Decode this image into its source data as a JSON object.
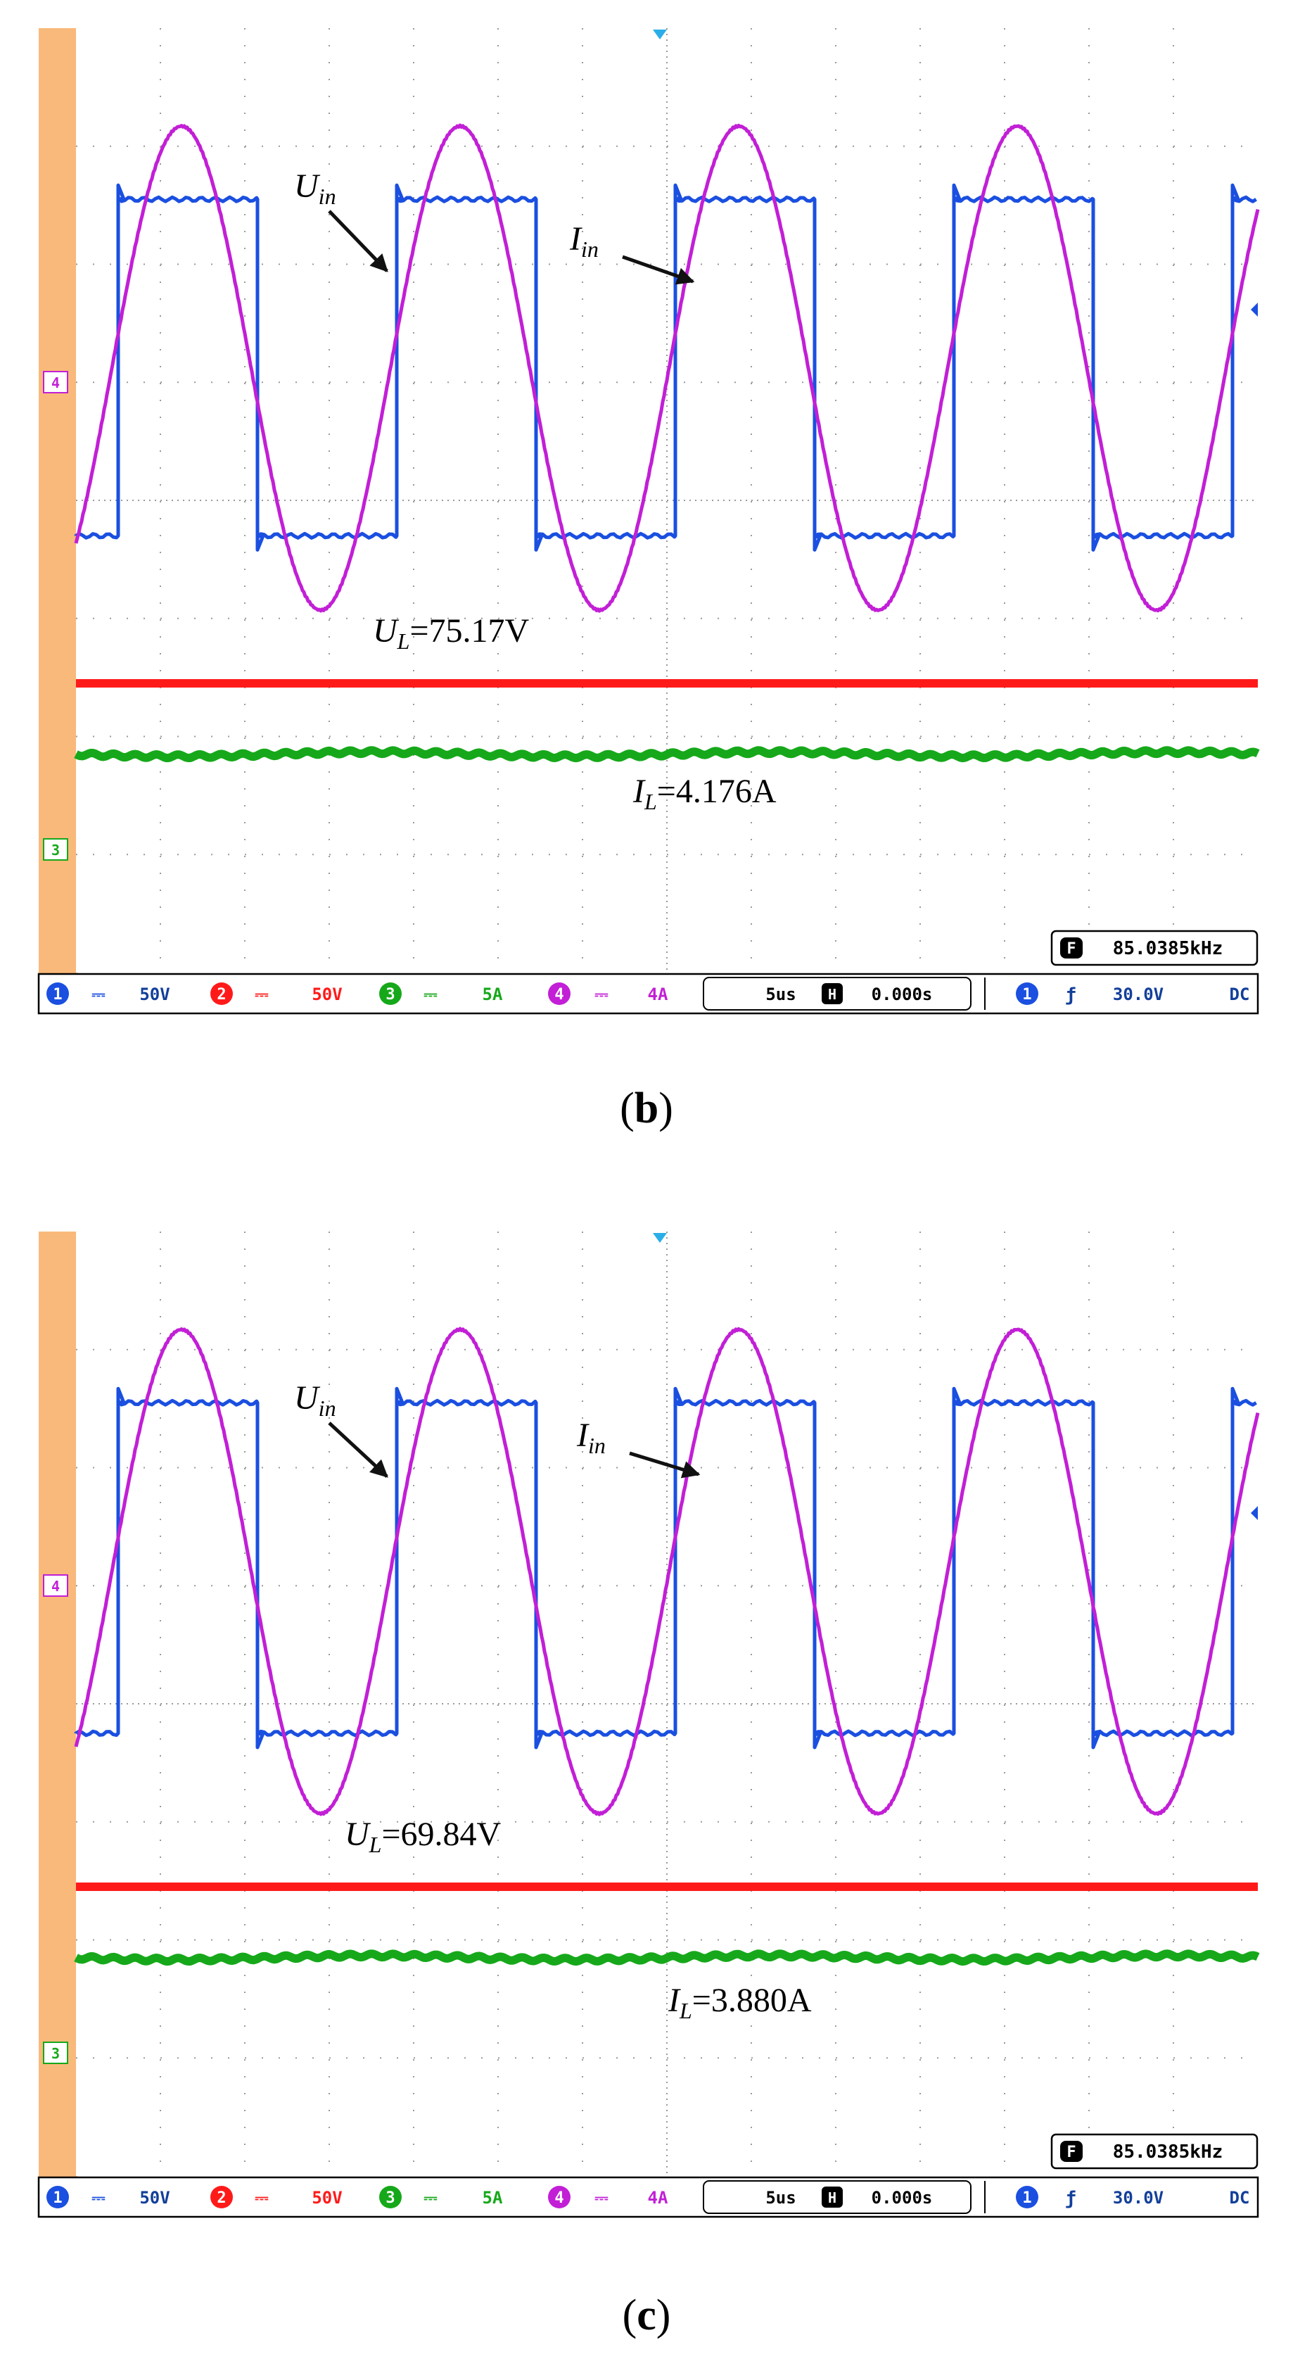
{
  "colors": {
    "ch1": "#1a4fe0",
    "ch2": "#ff1a1a",
    "ch3": "#16a81a",
    "ch4": "#c21fd6",
    "left_bar": "#f9b97a",
    "grid": "#9a9a9a",
    "statusbar_text": "#123f9a",
    "arrow": "#111111"
  },
  "panels": [
    {
      "caption_letter": "b",
      "caption_open": "(",
      "caption_close": ")",
      "labels": {
        "uin_main": "U",
        "uin_sub": "in",
        "iin_main": "I",
        "iin_sub": "in",
        "ul_main": "U",
        "ul_sub": "L",
        "ul_value": "=75.17V",
        "il_main": "I",
        "il_sub": "L",
        "il_value": "=4.176A"
      },
      "channel_markers": {
        "ch4": "4",
        "ch3": "3"
      },
      "frequency_readout": "85.0385kHz",
      "frequency_icon": "F",
      "statusbar": {
        "ch1_num": "1",
        "ch1_coupling": "⎓",
        "ch1_scale": "50V",
        "ch2_num": "2",
        "ch2_coupling": "⎓",
        "ch2_scale": "50V",
        "ch3_num": "3",
        "ch3_coupling": "⎓",
        "ch3_scale": "5A",
        "ch4_num": "4",
        "ch4_coupling": "⎓",
        "ch4_scale": "4A",
        "timebase": "5us",
        "h_icon": "H",
        "delay": "0.000s",
        "trig_ch": "1",
        "trig_slope": "ƒ",
        "trig_level": "30.0V",
        "trig_coupling": "DC"
      },
      "chart_data": {
        "type": "line",
        "xlabel": "",
        "ylabel": "",
        "x_divisions": 14,
        "y_divisions": 8,
        "grid": true,
        "series": [
          {
            "name": "Uin",
            "shape": "square",
            "color_key": "ch1",
            "period_div": 3.3,
            "high_div": 6.55,
            "low_div": 3.7,
            "first_rise_div": 0.5,
            "overshoot": true
          },
          {
            "name": "Iin",
            "shape": "sine",
            "color_key": "ch4",
            "period_div": 3.3,
            "center_div": 5.12,
            "amplitude_div": 2.05,
            "first_peak_div": 1.25
          },
          {
            "name": "UL",
            "shape": "dc",
            "color_key": "ch2",
            "value": 75.17,
            "unit": "V",
            "level_div": 2.45,
            "ripple": false
          },
          {
            "name": "IL",
            "shape": "dc",
            "color_key": "ch3",
            "value": 4.176,
            "unit": "A",
            "level_div": 1.85,
            "ripple": true
          }
        ]
      }
    },
    {
      "caption_letter": "c",
      "caption_open": "(",
      "caption_close": ")",
      "labels": {
        "uin_main": "U",
        "uin_sub": "in",
        "iin_main": "I",
        "iin_sub": "in",
        "ul_main": "U",
        "ul_sub": "L",
        "ul_value": "=69.84V",
        "il_main": "I",
        "il_sub": "L",
        "il_value": "=3.880A"
      },
      "channel_markers": {
        "ch4": "4",
        "ch3": "3"
      },
      "frequency_readout": "85.0385kHz",
      "frequency_icon": "F",
      "statusbar": {
        "ch1_num": "1",
        "ch1_coupling": "⎓",
        "ch1_scale": "50V",
        "ch2_num": "2",
        "ch2_coupling": "⎓",
        "ch2_scale": "50V",
        "ch3_num": "3",
        "ch3_coupling": "⎓",
        "ch3_scale": "5A",
        "ch4_num": "4",
        "ch4_coupling": "⎓",
        "ch4_scale": "4A",
        "timebase": "5us",
        "h_icon": "H",
        "delay": "0.000s",
        "trig_ch": "1",
        "trig_slope": "ƒ",
        "trig_level": "30.0V",
        "trig_coupling": "DC"
      },
      "chart_data": {
        "type": "line",
        "xlabel": "",
        "ylabel": "",
        "x_divisions": 14,
        "y_divisions": 8,
        "grid": true,
        "series": [
          {
            "name": "Uin",
            "shape": "square",
            "color_key": "ch1",
            "period_div": 3.3,
            "high_div": 6.55,
            "low_div": 3.75,
            "first_rise_div": 0.5,
            "overshoot": true
          },
          {
            "name": "Iin",
            "shape": "sine",
            "color_key": "ch4",
            "period_div": 3.3,
            "center_div": 5.12,
            "amplitude_div": 2.05,
            "first_peak_div": 1.25
          },
          {
            "name": "UL",
            "shape": "dc",
            "color_key": "ch2",
            "value": 69.84,
            "unit": "V",
            "level_div": 2.45,
            "ripple": false
          },
          {
            "name": "IL",
            "shape": "dc",
            "color_key": "ch3",
            "value": 3.88,
            "unit": "A",
            "level_div": 1.85,
            "ripple": true
          }
        ]
      }
    }
  ]
}
